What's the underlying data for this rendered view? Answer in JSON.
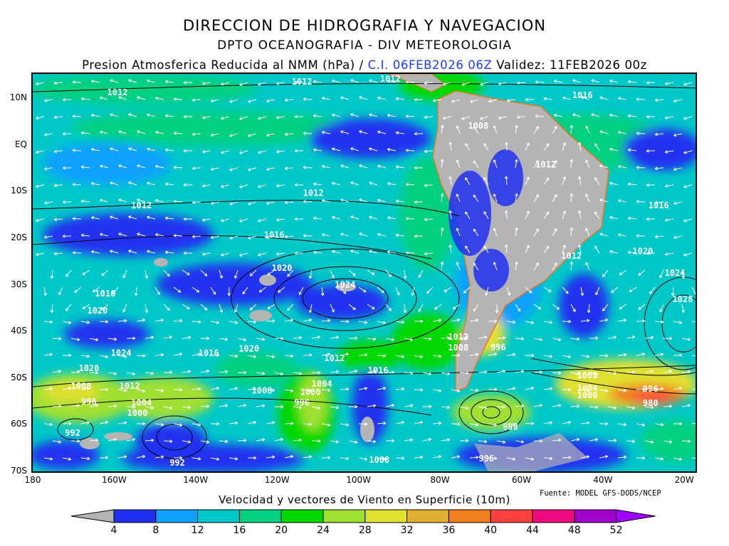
{
  "header": {
    "line1": "DIRECCION DE HIDROGRAFIA Y NAVEGACION",
    "line2": "DPTO OCEANOGRAFIA - DIV METEOROLOGIA",
    "line3_prefix": "Presion Atmosferica Reducida al NMM (hPa) / ",
    "ci": "C.I. 06FEB2026 06Z",
    "validez": "  Validez: 11FEB2026 00z"
  },
  "map": {
    "lon_range": [
      -180,
      -17
    ],
    "lat_range": [
      -70,
      15
    ],
    "lat_ticks": [
      {
        "value": 10,
        "label": "10N"
      },
      {
        "value": 0,
        "label": "EQ"
      },
      {
        "value": -10,
        "label": "10S"
      },
      {
        "value": -20,
        "label": "20S"
      },
      {
        "value": -30,
        "label": "30S"
      },
      {
        "value": -40,
        "label": "40S"
      },
      {
        "value": -50,
        "label": "50S"
      },
      {
        "value": -60,
        "label": "60S"
      },
      {
        "value": -70,
        "label": "70S"
      }
    ],
    "lon_ticks": [
      {
        "value": -180,
        "label": "180"
      },
      {
        "value": -160,
        "label": "160W"
      },
      {
        "value": -140,
        "label": "140W"
      },
      {
        "value": -120,
        "label": "120W"
      },
      {
        "value": -100,
        "label": "100W"
      },
      {
        "value": -80,
        "label": "80W"
      },
      {
        "value": -60,
        "label": "60W"
      },
      {
        "value": -40,
        "label": "40W"
      },
      {
        "value": -20,
        "label": "20W"
      }
    ],
    "isobar_labels": [
      {
        "value": "1012",
        "lon": -159.2,
        "lat": 11.2
      },
      {
        "value": "1012",
        "lon": -113.9,
        "lat": 13.5
      },
      {
        "value": "1012",
        "lon": -92.2,
        "lat": 14.1
      },
      {
        "value": "1016",
        "lon": -45.0,
        "lat": 10.6
      },
      {
        "value": "1008",
        "lon": -70.6,
        "lat": 4.1
      },
      {
        "value": "1012",
        "lon": -54.0,
        "lat": -4.2
      },
      {
        "value": "1012",
        "lon": -111.1,
        "lat": -10.3
      },
      {
        "value": "1012",
        "lon": -153.3,
        "lat": -13.0
      },
      {
        "value": "1016",
        "lon": -26.3,
        "lat": -13.0
      },
      {
        "value": "1016",
        "lon": -120.7,
        "lat": -19.3
      },
      {
        "value": "1020",
        "lon": -30.2,
        "lat": -22.8
      },
      {
        "value": "1012",
        "lon": -47.7,
        "lat": -23.8
      },
      {
        "value": "1020",
        "lon": -118.8,
        "lat": -26.4
      },
      {
        "value": "1024",
        "lon": -22.3,
        "lat": -27.5
      },
      {
        "value": "1024",
        "lon": -103.3,
        "lat": -30.0
      },
      {
        "value": "1016",
        "lon": -162.2,
        "lat": -31.9
      },
      {
        "value": "1028",
        "lon": -20.4,
        "lat": -33.1
      },
      {
        "value": "1020",
        "lon": -164.1,
        "lat": -35.6
      },
      {
        "value": "1012",
        "lon": -75.5,
        "lat": -41.2
      },
      {
        "value": "1008",
        "lon": -75.5,
        "lat": -43.5
      },
      {
        "value": "996",
        "lon": -65.7,
        "lat": -43.4
      },
      {
        "value": "1024",
        "lon": -158.3,
        "lat": -44.6
      },
      {
        "value": "1020",
        "lon": -126.9,
        "lat": -43.7
      },
      {
        "value": "1016",
        "lon": -136.8,
        "lat": -44.6
      },
      {
        "value": "1012",
        "lon": -105.9,
        "lat": -45.8
      },
      {
        "value": "1020",
        "lon": -166.2,
        "lat": -47.9
      },
      {
        "value": "1016",
        "lon": -95.2,
        "lat": -48.4
      },
      {
        "value": "1008",
        "lon": -43.8,
        "lat": -49.4
      },
      {
        "value": "1004",
        "lon": -109.0,
        "lat": -51.3
      },
      {
        "value": "1004",
        "lon": -43.8,
        "lat": -52.2
      },
      {
        "value": "1000",
        "lon": -43.8,
        "lat": -53.7
      },
      {
        "value": "1008",
        "lon": -168.1,
        "lat": -51.7
      },
      {
        "value": "1012",
        "lon": -156.2,
        "lat": -51.7
      },
      {
        "value": "996",
        "lon": -28.3,
        "lat": -52.3
      },
      {
        "value": "980",
        "lon": -28.3,
        "lat": -55.4
      },
      {
        "value": "1008",
        "lon": -123.7,
        "lat": -52.7
      },
      {
        "value": "1000",
        "lon": -111.8,
        "lat": -53.0
      },
      {
        "value": "996",
        "lon": -113.9,
        "lat": -55.3
      },
      {
        "value": "996",
        "lon": -166.2,
        "lat": -55.1
      },
      {
        "value": "1004",
        "lon": -153.3,
        "lat": -55.3
      },
      {
        "value": "1000",
        "lon": -154.3,
        "lat": -57.5
      },
      {
        "value": "992",
        "lon": -170.2,
        "lat": -61.8
      },
      {
        "value": "988",
        "lon": -62.7,
        "lat": -60.5
      },
      {
        "value": "1008",
        "lon": -94.9,
        "lat": -67.6
      },
      {
        "value": "992",
        "lon": -144.5,
        "lat": -68.2
      },
      {
        "value": "996",
        "lon": -68.6,
        "lat": -67.3
      }
    ],
    "colors": {
      "land": "#b4b4b4",
      "coastline": "#f07820",
      "contour": "#000000",
      "vectors": "#ffffff"
    }
  },
  "source": "Fuente: MODEL GFS-DODS/NCEP",
  "colorbar": {
    "title": "Velocidad y vectores de Viento en Superficie (10m)",
    "ticks": [
      "4",
      "8",
      "12",
      "16",
      "20",
      "24",
      "28",
      "32",
      "36",
      "40",
      "44",
      "48",
      "52"
    ],
    "under_color": "#b4b4b4",
    "colors": [
      "#2030f0",
      "#10a0ff",
      "#00c8c8",
      "#00d080",
      "#00d800",
      "#a0e030",
      "#e0e030",
      "#e0b030",
      "#f08020",
      "#ff4040",
      "#f00a80",
      "#a000c8"
    ],
    "over_color": "#a000ff"
  }
}
